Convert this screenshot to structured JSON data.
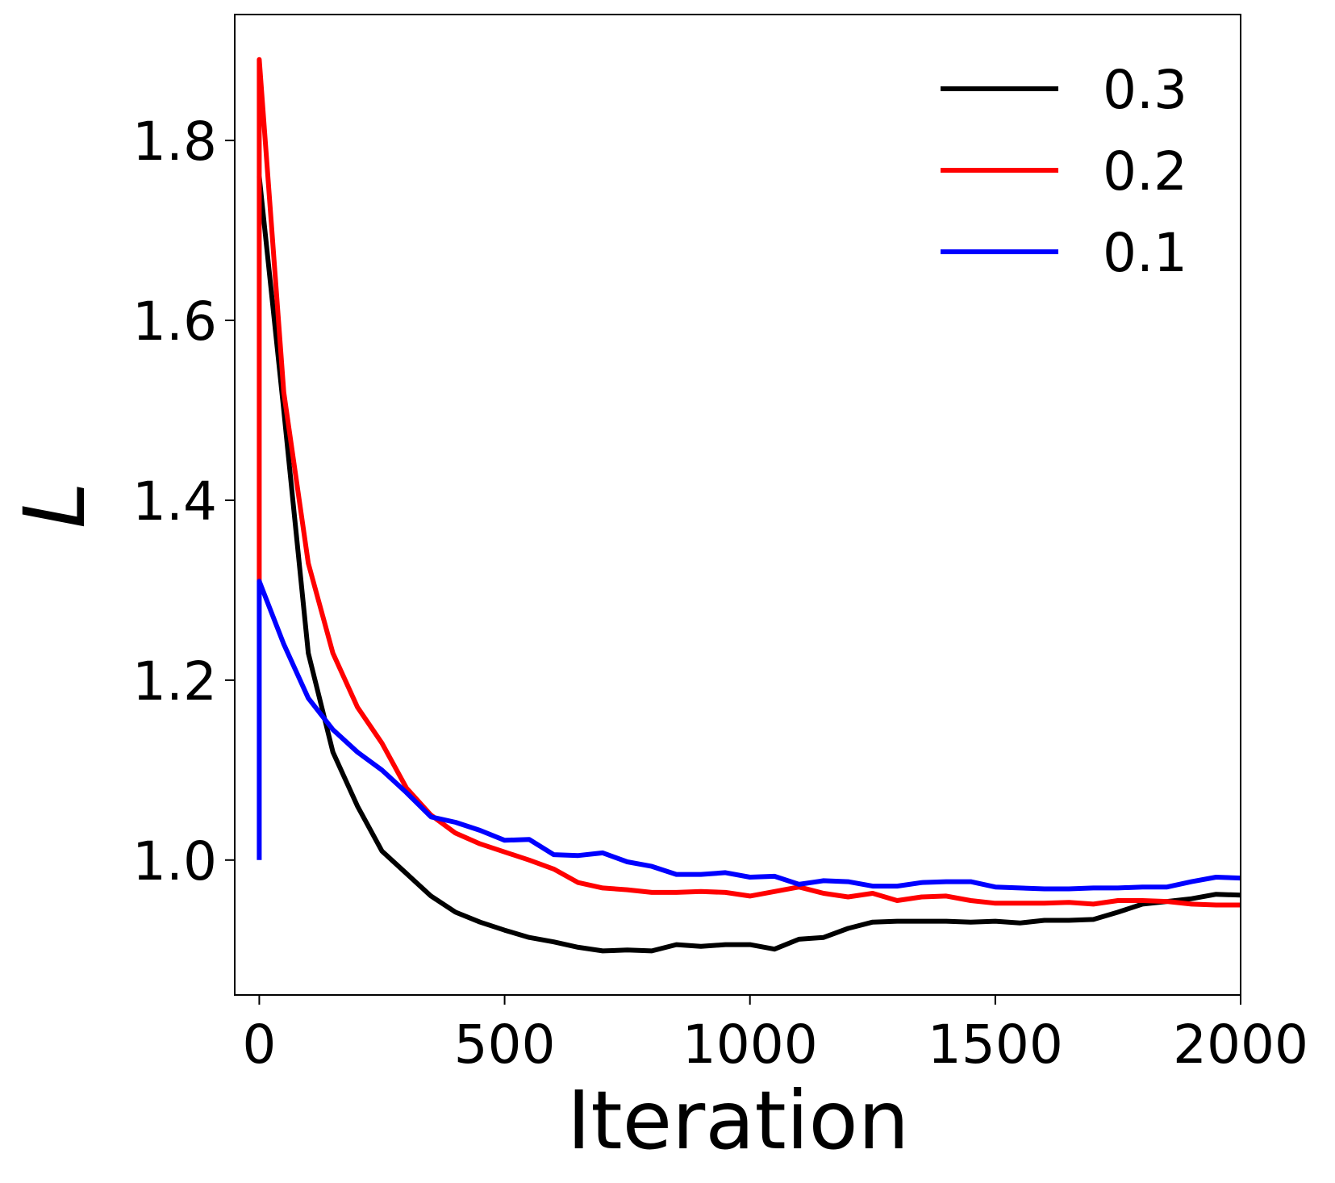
{
  "chart_data": {
    "type": "line",
    "title": "",
    "xlabel": "Iteration",
    "ylabel": "L",
    "xlim": [
      -50,
      2000
    ],
    "ylim": [
      0.85,
      1.94
    ],
    "xticks": [
      0,
      500,
      1000,
      1500,
      2000
    ],
    "yticks": [
      1.0,
      1.2,
      1.4,
      1.6,
      1.8
    ],
    "xtick_labels": [
      "0",
      "500",
      "1000",
      "1500",
      "2000"
    ],
    "ytick_labels": [
      "1.0",
      "1.2",
      "1.4",
      "1.6",
      "1.8"
    ],
    "grid": false,
    "legend_position": "top-right",
    "series": [
      {
        "name": "0.3",
        "color": "#000000",
        "points": [
          [
            0,
            1.76
          ],
          [
            50,
            1.5
          ],
          [
            100,
            1.23
          ],
          [
            150,
            1.12
          ],
          [
            200,
            1.06
          ],
          [
            250,
            1.01
          ],
          [
            300,
            0.985
          ],
          [
            350,
            0.96
          ],
          [
            400,
            0.942
          ],
          [
            450,
            0.931
          ],
          [
            500,
            0.922
          ],
          [
            550,
            0.914
          ],
          [
            600,
            0.909
          ],
          [
            650,
            0.903
          ],
          [
            700,
            0.899
          ],
          [
            750,
            0.9
          ],
          [
            800,
            0.899
          ],
          [
            850,
            0.906
          ],
          [
            900,
            0.904
          ],
          [
            950,
            0.906
          ],
          [
            1000,
            0.906
          ],
          [
            1050,
            0.901
          ],
          [
            1100,
            0.912
          ],
          [
            1150,
            0.914
          ],
          [
            1200,
            0.924
          ],
          [
            1250,
            0.931
          ],
          [
            1300,
            0.932
          ],
          [
            1350,
            0.932
          ],
          [
            1400,
            0.932
          ],
          [
            1450,
            0.931
          ],
          [
            1500,
            0.932
          ],
          [
            1550,
            0.93
          ],
          [
            1600,
            0.933
          ],
          [
            1650,
            0.933
          ],
          [
            1700,
            0.934
          ],
          [
            1750,
            0.942
          ],
          [
            1800,
            0.951
          ],
          [
            1850,
            0.954
          ],
          [
            1900,
            0.957
          ],
          [
            1950,
            0.962
          ],
          [
            2000,
            0.961
          ]
        ]
      },
      {
        "name": "0.2",
        "color": "#ff0000",
        "points": [
          [
            0,
            1.31
          ],
          [
            0,
            1.89
          ],
          [
            50,
            1.52
          ],
          [
            100,
            1.33
          ],
          [
            150,
            1.23
          ],
          [
            200,
            1.17
          ],
          [
            250,
            1.13
          ],
          [
            300,
            1.08
          ],
          [
            350,
            1.05
          ],
          [
            400,
            1.03
          ],
          [
            450,
            1.018
          ],
          [
            500,
            1.009
          ],
          [
            550,
            1.0
          ],
          [
            600,
            0.99
          ],
          [
            650,
            0.975
          ],
          [
            700,
            0.969
          ],
          [
            750,
            0.967
          ],
          [
            800,
            0.964
          ],
          [
            850,
            0.964
          ],
          [
            900,
            0.965
          ],
          [
            950,
            0.964
          ],
          [
            1000,
            0.96
          ],
          [
            1050,
            0.965
          ],
          [
            1100,
            0.97
          ],
          [
            1150,
            0.963
          ],
          [
            1200,
            0.959
          ],
          [
            1250,
            0.963
          ],
          [
            1300,
            0.955
          ],
          [
            1350,
            0.959
          ],
          [
            1400,
            0.96
          ],
          [
            1450,
            0.955
          ],
          [
            1500,
            0.952
          ],
          [
            1550,
            0.952
          ],
          [
            1600,
            0.952
          ],
          [
            1650,
            0.953
          ],
          [
            1700,
            0.951
          ],
          [
            1750,
            0.955
          ],
          [
            1800,
            0.955
          ],
          [
            1850,
            0.954
          ],
          [
            1900,
            0.951
          ],
          [
            1950,
            0.95
          ],
          [
            2000,
            0.95
          ]
        ]
      },
      {
        "name": "0.1",
        "color": "#0000ff",
        "points": [
          [
            0,
            1.0
          ],
          [
            0,
            1.31
          ],
          [
            50,
            1.24
          ],
          [
            100,
            1.18
          ],
          [
            150,
            1.145
          ],
          [
            200,
            1.12
          ],
          [
            250,
            1.1
          ],
          [
            300,
            1.075
          ],
          [
            350,
            1.048
          ],
          [
            400,
            1.042
          ],
          [
            450,
            1.033
          ],
          [
            500,
            1.022
          ],
          [
            550,
            1.023
          ],
          [
            600,
            1.006
          ],
          [
            650,
            1.005
          ],
          [
            700,
            1.008
          ],
          [
            750,
            0.998
          ],
          [
            800,
            0.993
          ],
          [
            850,
            0.984
          ],
          [
            900,
            0.984
          ],
          [
            950,
            0.986
          ],
          [
            1000,
            0.981
          ],
          [
            1050,
            0.982
          ],
          [
            1100,
            0.973
          ],
          [
            1150,
            0.977
          ],
          [
            1200,
            0.976
          ],
          [
            1250,
            0.971
          ],
          [
            1300,
            0.971
          ],
          [
            1350,
            0.975
          ],
          [
            1400,
            0.976
          ],
          [
            1450,
            0.976
          ],
          [
            1500,
            0.97
          ],
          [
            1550,
            0.969
          ],
          [
            1600,
            0.968
          ],
          [
            1650,
            0.968
          ],
          [
            1700,
            0.969
          ],
          [
            1750,
            0.969
          ],
          [
            1800,
            0.97
          ],
          [
            1850,
            0.97
          ],
          [
            1900,
            0.976
          ],
          [
            1950,
            0.981
          ],
          [
            2000,
            0.98
          ]
        ]
      }
    ]
  }
}
